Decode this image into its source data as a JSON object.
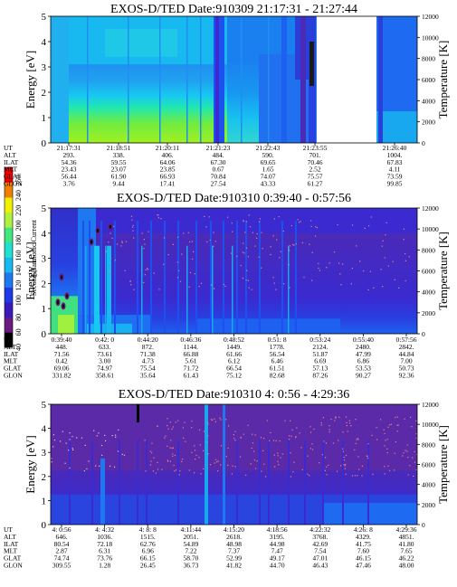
{
  "colorbar": {
    "label": "Second Harmonic Current",
    "ticks": [
      "40",
      "60",
      "80",
      "100",
      "120",
      "140",
      "160",
      "180",
      "200",
      "220",
      "240",
      "250"
    ],
    "colors": [
      "#000000",
      "#6a1a80",
      "#3a1ab8",
      "#1e3ae8",
      "#1e78f0",
      "#18b8f0",
      "#20e0d0",
      "#40e880",
      "#b0f040",
      "#f0f000",
      "#f08000",
      "#f00000"
    ]
  },
  "chart_data": [
    {
      "type": "heatmap",
      "title": "EXOS-D/TED   Date:910309  21:17:31 - 21:27:44",
      "ylabel": "Energy [eV]",
      "y2label": "Temperature [K]",
      "yticks": [
        "0",
        "1",
        "2",
        "3",
        "4",
        "5"
      ],
      "y2ticks": [
        "0",
        "2000",
        "4000",
        "6000",
        "8000",
        "10000",
        "12000"
      ],
      "ylim": [
        0,
        5
      ],
      "y2lim": [
        0,
        12000
      ],
      "row_labels": [
        "UT",
        "ALT",
        "ILAT",
        "MLT",
        "GLAT",
        "GLON"
      ],
      "columns": [
        [
          "21:17:31",
          "293.",
          "54.36",
          "23.43",
          "56.44",
          "3.76"
        ],
        [
          "21:18:51",
          "338.",
          "59.55",
          "23.07",
          "61.90",
          "9.44"
        ],
        [
          "21:20:11",
          "406.",
          "64.06",
          "23.85",
          "66.93",
          "17.41"
        ],
        [
          "21:21:23",
          "484.",
          "67.30",
          "0.67",
          "70.84",
          "27.54"
        ],
        [
          "21:22:43",
          "590.",
          "69.65",
          "1.65",
          "74.07",
          "43.33"
        ],
        [
          "21:23:55",
          "701.",
          "70.46",
          "2.52",
          "75.57",
          "61.27"
        ],
        [
          "",
          "",
          "",
          "",
          "",
          ""
        ],
        [
          "21:26:40",
          "1004.",
          "67.83",
          "4.11",
          "73.59",
          "99.85"
        ]
      ]
    },
    {
      "type": "heatmap",
      "title": "EXOS-D/TED   Date:910310   0:39:40 - 0:57:56",
      "ylabel": "Energy [eV]",
      "y2label": "Temperature [K]",
      "yticks": [
        "0",
        "1",
        "2",
        "3",
        "4",
        "5"
      ],
      "y2ticks": [
        "0",
        "2000",
        "4000",
        "6000",
        "8000",
        "10000",
        "12000"
      ],
      "ylim": [
        0,
        5
      ],
      "y2lim": [
        0,
        12000
      ],
      "row_labels": [
        "UT",
        "ALT",
        "ILAT",
        "MLT",
        "GLAT",
        "GLON"
      ],
      "columns": [
        [
          "0:39:40",
          "448.",
          "71.56",
          "0.42",
          "69.06",
          "331.82"
        ],
        [
          "0:42: 0",
          "633.",
          "73.61",
          "3.00",
          "74.97",
          "358.61"
        ],
        [
          "0:44:20",
          "872.",
          "71.38",
          "4.73",
          "75.54",
          "35.64"
        ],
        [
          "0:46:36",
          "1144.",
          "66.88",
          "5.61",
          "71.72",
          "61.43"
        ],
        [
          "0:48:52",
          "1449.",
          "61.66",
          "6.12",
          "66.54",
          "75.12"
        ],
        [
          "0:51: 8",
          "1778.",
          "56.54",
          "6.46",
          "61.51",
          "82.68"
        ],
        [
          "0:53:24",
          "2124.",
          "51.87",
          "6.69",
          "57.13",
          "87.26"
        ],
        [
          "0:55:40",
          "2480.",
          "47.99",
          "6.86",
          "53.53",
          "90.27"
        ],
        [
          "0:57:56",
          "2842.",
          "44.84",
          "7.00",
          "50.73",
          "92.36"
        ]
      ]
    },
    {
      "type": "heatmap",
      "title": "EXOS-D/TED   Date:910310   4: 0:56 - 4:29:36",
      "ylabel": "Energy [eV]",
      "y2label": "Temperature [K]",
      "yticks": [
        "0",
        "1",
        "2",
        "3",
        "4",
        "5"
      ],
      "y2ticks": [
        "0",
        "2000",
        "4000",
        "6000",
        "8000",
        "10000",
        "12000"
      ],
      "ylim": [
        0,
        5
      ],
      "y2lim": [
        0,
        12000
      ],
      "row_labels": [
        "UT",
        "ALT",
        "ILAT",
        "MLT",
        "GLAT",
        "GLON"
      ],
      "columns": [
        [
          "4: 0:56",
          "646.",
          "80.54",
          "2.87",
          "74.74",
          "309.55"
        ],
        [
          "4: 4:32",
          "1036.",
          "72.18",
          "6.31",
          "73.76",
          "1.28"
        ],
        [
          "4: 8: 8",
          "1515.",
          "62.76",
          "6.96",
          "66.15",
          "26.45"
        ],
        [
          "4:11:44",
          "2051.",
          "54.89",
          "7.22",
          "58.70",
          "36.73"
        ],
        [
          "4:15:20",
          "2618.",
          "48.98",
          "7.37",
          "52.99",
          "41.82"
        ],
        [
          "4:18:56",
          "3195.",
          "44.98",
          "7.47",
          "49.17",
          "44.70"
        ],
        [
          "4:22:32",
          "3768.",
          "42.69",
          "7.54",
          "47.01",
          "46.43"
        ],
        [
          "4:26: 8",
          "4329.",
          "41.75",
          "7.60",
          "46.15",
          "47.46"
        ],
        [
          "4:29:36",
          "4851.",
          "41.80",
          "7.65",
          "46.22",
          "48.00"
        ]
      ]
    }
  ]
}
